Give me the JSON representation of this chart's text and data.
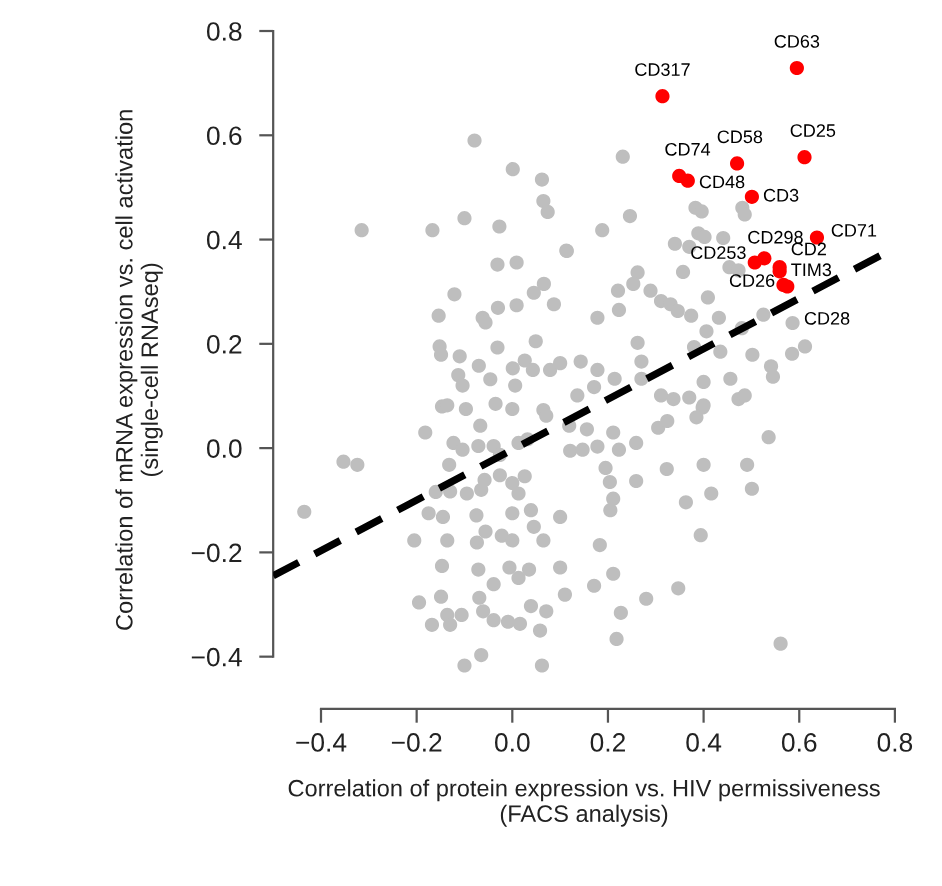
{
  "chart_data": {
    "type": "scatter",
    "xlabel": "Correlation of protein expression vs. HIV permissiveness\n(FACS analysis)",
    "ylabel": "Correlation of mRNA expression vs. cell activation\n(single-cell RNAseq)",
    "xlim": [
      -0.5,
      0.8
    ],
    "ylim": [
      -0.5,
      0.8
    ],
    "xticks": [
      -0.4,
      -0.2,
      {
        "value": 0,
        "label": "0.0"
      },
      0.2,
      0.4,
      0.6,
      0.8
    ],
    "yticks": [
      -0.4,
      -0.2,
      {
        "value": 0,
        "label": "0.0"
      },
      0.2,
      0.4,
      0.6,
      0.8
    ],
    "grid": false,
    "legend": false,
    "marker": "circle",
    "series": [
      {
        "color": "#bebebe",
        "x": [
          -0.079,
          0.001,
          0.062,
          0.065,
          0.074,
          -0.315,
          -0.167,
          -0.1,
          -0.027,
          0.113,
          -0.031,
          0.009,
          -0.121,
          -0.154,
          -0.062,
          -0.056,
          -0.03,
          0.009,
          0.045,
          0.066,
          0.087,
          -0.152,
          -0.149,
          -0.11,
          -0.031,
          -0.07,
          -0.113,
          -0.104,
          -0.046,
          0.001,
          0.026,
          0.043,
          0.049,
          0.079,
          0.1,
          0.006,
          -0.147,
          -0.097,
          -0.035,
          0.0,
          0.065,
          -0.136,
          0.071,
          -0.182,
          -0.067,
          -0.123,
          -0.104,
          -0.071,
          -0.039,
          -0.026,
          0.013,
          0.032,
          0.119,
          0.121,
          -0.353,
          -0.324,
          -0.435,
          -0.132,
          -0.16,
          -0.13,
          -0.095,
          -0.065,
          -0.058,
          -0.026,
          0.0,
          0.026,
          0.013,
          -0.175,
          -0.145,
          -0.075,
          0.0,
          0.039,
          0.1,
          -0.205,
          -0.136,
          -0.074,
          -0.056,
          -0.022,
          0.0,
          0.045,
          0.065,
          -0.147,
          -0.071,
          -0.039,
          -0.006,
          0.013,
          0.035,
          0.1,
          0.11,
          -0.195,
          -0.149,
          -0.136,
          -0.106,
          -0.069,
          -0.061,
          -0.039,
          -0.009,
          0.016,
          0.039,
          0.071,
          0.058,
          -0.168,
          -0.13,
          -0.065,
          -0.1,
          0.062,
          0.156,
          0.147,
          0.178,
          0.211,
          0.223,
          0.259,
          0.305,
          0.324,
          0.385,
          0.398,
          0.536,
          0.195,
          0.204,
          0.259,
          0.323,
          0.4,
          0.491,
          0.501,
          0.416,
          0.363,
          0.211,
          0.205,
          0.394,
          0.183,
          0.211,
          0.171,
          0.28,
          0.347,
          0.227,
          0.218,
          0.561,
          0.231,
          0.383,
          0.396,
          0.481,
          0.486,
          0.246,
          0.188,
          0.114,
          0.34,
          0.37,
          0.389,
          0.402,
          0.441,
          0.454,
          0.473,
          0.357,
          0.262,
          0.253,
          0.289,
          0.221,
          0.311,
          0.331,
          0.223,
          0.178,
          0.346,
          0.409,
          0.374,
          0.406,
          0.432,
          0.48,
          0.525,
          0.586,
          0.262,
          0.27,
          0.38,
          0.435,
          0.502,
          0.541,
          0.545,
          0.585,
          0.612,
          0.143,
          0.178,
          0.214,
          0.27,
          0.4,
          0.456,
          0.136,
          0.171,
          0.311,
          0.337,
          0.37,
          0.4,
          0.473,
          0.486
        ],
        "values": [
          0.59,
          0.535,
          0.515,
          0.474,
          0.453,
          0.418,
          0.418,
          0.441,
          0.425,
          0.379,
          0.352,
          0.356,
          0.295,
          0.254,
          0.25,
          0.241,
          0.269,
          0.274,
          0.298,
          0.315,
          0.276,
          0.195,
          0.179,
          0.176,
          0.193,
          0.158,
          0.14,
          0.12,
          0.132,
          0.153,
          0.168,
          0.15,
          0.205,
          0.15,
          0.163,
          0.12,
          0.08,
          0.075,
          0.085,
          0.075,
          0.073,
          0.082,
          0.062,
          0.03,
          0.043,
          0.01,
          -0.003,
          0.004,
          0.004,
          -0.013,
          0.01,
          0.017,
          0.043,
          -0.005,
          -0.026,
          -0.032,
          -0.122,
          -0.032,
          -0.084,
          -0.083,
          -0.087,
          -0.08,
          -0.061,
          -0.052,
          -0.067,
          -0.054,
          -0.087,
          -0.125,
          -0.132,
          -0.129,
          -0.125,
          -0.119,
          -0.132,
          -0.177,
          -0.177,
          -0.181,
          -0.16,
          -0.168,
          -0.177,
          -0.151,
          -0.177,
          -0.226,
          -0.233,
          -0.261,
          -0.229,
          -0.249,
          -0.233,
          -0.229,
          -0.281,
          -0.296,
          -0.285,
          -0.32,
          -0.32,
          -0.287,
          -0.313,
          -0.33,
          -0.333,
          -0.337,
          -0.303,
          -0.313,
          -0.35,
          -0.339,
          -0.339,
          -0.397,
          -0.417,
          -0.417,
          0.036,
          -0.003,
          0.003,
          0.03,
          -0.003,
          0.01,
          0.039,
          0.052,
          0.059,
          0.078,
          0.021,
          -0.038,
          -0.065,
          -0.063,
          -0.04,
          -0.032,
          -0.032,
          -0.078,
          -0.087,
          -0.104,
          -0.097,
          -0.119,
          -0.167,
          -0.186,
          -0.241,
          -0.264,
          -0.289,
          -0.269,
          -0.316,
          -0.366,
          -0.375,
          0.559,
          0.461,
          0.454,
          0.461,
          0.448,
          0.445,
          0.418,
          0.378,
          0.392,
          0.386,
          0.412,
          0.405,
          0.403,
          0.347,
          0.341,
          0.338,
          0.337,
          0.315,
          0.302,
          0.302,
          0.282,
          0.276,
          0.265,
          0.25,
          0.263,
          0.289,
          0.254,
          0.224,
          0.25,
          0.23,
          0.256,
          0.24,
          0.202,
          0.166,
          0.194,
          0.185,
          0.179,
          0.157,
          0.137,
          0.181,
          0.195,
          0.166,
          0.15,
          0.133,
          0.133,
          0.127,
          0.133,
          0.101,
          0.117,
          0.101,
          0.094,
          0.097,
          0.082,
          0.094,
          0.101
        ]
      },
      {
        "color": "#ff0000",
        "x": [
          0.595,
          0.314,
          0.47,
          0.611,
          0.349,
          0.367,
          0.501,
          0.637,
          0.527,
          0.507,
          0.559,
          0.559,
          0.567,
          0.575
        ],
        "values": [
          0.729,
          0.675,
          0.546,
          0.558,
          0.522,
          0.513,
          0.482,
          0.404,
          0.364,
          0.356,
          0.347,
          0.339,
          0.313,
          0.31
        ]
      },
      {
        "type": "line",
        "color": "#000000",
        "line_style": "dashed",
        "marker": "none",
        "x": [
          -0.5,
          0.8
        ],
        "values": [
          -0.245,
          0.384
        ]
      }
    ],
    "annotations": [
      {
        "text": "CD63",
        "x": 0.595,
        "y": 0.729
      },
      {
        "text": "CD317",
        "x": 0.314,
        "y": 0.675
      },
      {
        "text": "CD58",
        "x": 0.47,
        "y": 0.546
      },
      {
        "text": "CD25",
        "x": 0.611,
        "y": 0.558
      },
      {
        "text": "CD74",
        "x": 0.349,
        "y": 0.522
      },
      {
        "text": "CD48",
        "x": 0.367,
        "y": 0.513
      },
      {
        "text": "CD3",
        "x": 0.501,
        "y": 0.482
      },
      {
        "text": "CD71",
        "x": 0.637,
        "y": 0.404
      },
      {
        "text": "CD298",
        "x": 0.527,
        "y": 0.364
      },
      {
        "text": "CD253",
        "x": 0.507,
        "y": 0.356
      },
      {
        "text": "CD2",
        "x": 0.559,
        "y": 0.347
      },
      {
        "text": "TIM3",
        "x": 0.559,
        "y": 0.339
      },
      {
        "text": "CD26",
        "x": 0.567,
        "y": 0.313
      },
      {
        "text": "CD28",
        "x": 0.575,
        "y": 0.31
      }
    ]
  }
}
